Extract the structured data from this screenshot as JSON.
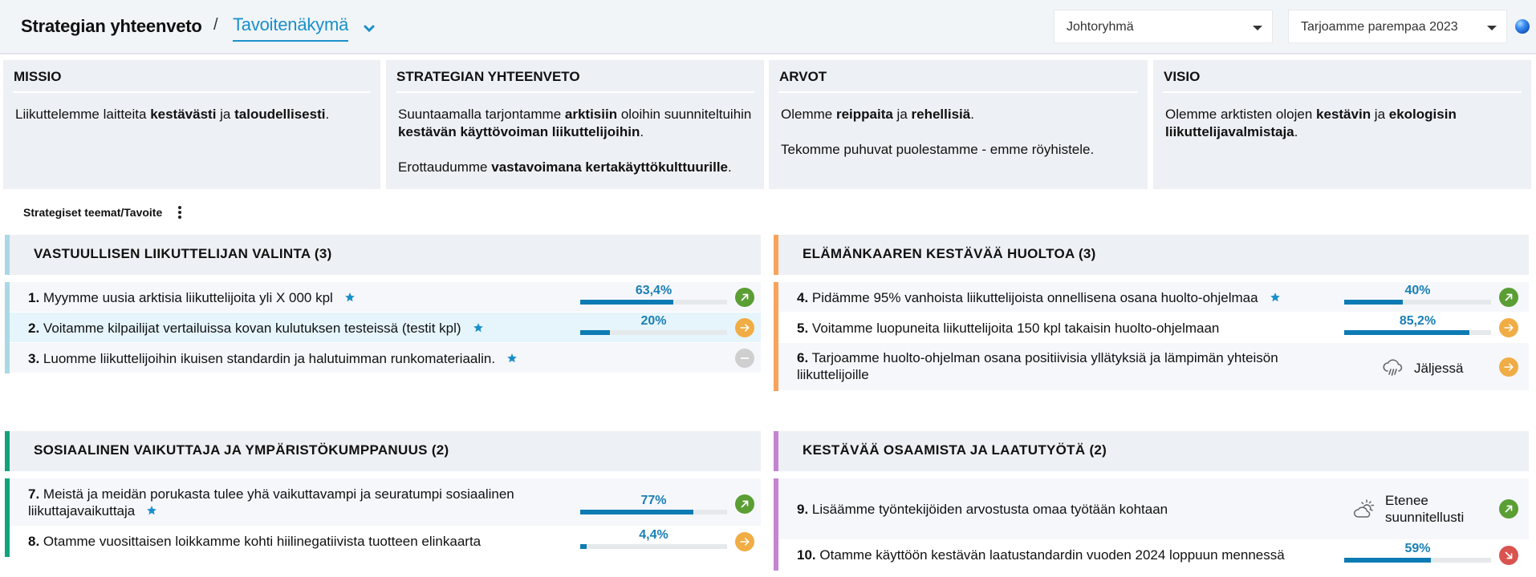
{
  "header": {
    "breadcrumb_root": "Strategian yhteenveto",
    "separator": "/",
    "current_view": "Tavoitenäkymä",
    "group_select": "Johtoryhmä",
    "strategy_select": "Tarjoamme parempaa 2023"
  },
  "cards": [
    {
      "title": "MISSIO",
      "paragraphs": [
        "Liikuttelemme laitteita <b>kestävästi</b> ja <b>taloudellisesti</b>."
      ]
    },
    {
      "title": "STRATEGIAN YHTEENVETO",
      "paragraphs": [
        "Suuntaamalla tarjontamme <b>arktisiin</b> oloihin suunniteltuihin <b>kestävän käyttövoiman liikuttelijoihin</b>.",
        "Erottaudumme <b>vastavoimana kertakäyttökulttuurille</b>."
      ]
    },
    {
      "title": "ARVOT",
      "paragraphs": [
        "Olemme <b>reippaita</b> ja <b>rehellisiä</b>.",
        "Tekomme puhuvat puolestamme - emme röyhistele."
      ]
    },
    {
      "title": "VISIO",
      "paragraphs": [
        "Olemme arktisten olojen <b>kestävin</b> ja <b>ekologisin liikuttelijavalmistaja</b>."
      ]
    }
  ],
  "section": {
    "label": "Strategiset teemat/Tavoite"
  },
  "colors": {
    "accent": "#1a8fc9",
    "progress": "#0d7bb3",
    "status_green": "#5a9e34",
    "status_orange": "#f0ad45",
    "status_red": "#d9534f",
    "status_gray": "#cfcfcf",
    "theme1": "#a9d8e6",
    "theme2": "#f7a35c",
    "theme3": "#12a37a",
    "theme4": "#c583d1"
  },
  "themes": [
    {
      "title": "VASTUULLISEN LIIKUTTELIJAN VALINTA (3)",
      "goals": [
        {
          "num": "1.",
          "text": "Myymme uusia arktisia liikuttelijoita yli X 000 kpl",
          "starred": true,
          "progress": "63,4%",
          "pct": 63.4,
          "status": "green-up-right"
        },
        {
          "num": "2.",
          "text": "Voitamme kilpailijat vertailuissa kovan kulutuksen testeissä (testit kpl)",
          "starred": true,
          "progress": "20%",
          "pct": 20,
          "status": "orange-right"
        },
        {
          "num": "3.",
          "text": "Luomme liikuttelijoihin ikuisen standardin ja halutuimman runkomateriaalin.",
          "starred": true,
          "progress": null,
          "status": "gray-none"
        }
      ]
    },
    {
      "title": "ELÄMÄNKAAREN KESTÄVÄÄ HUOLTOA (3)",
      "goals": [
        {
          "num": "4.",
          "text": "Pidämme 95% vanhoista liikuttelijoista onnellisena osana huolto-ohjelmaa",
          "starred": true,
          "progress": "40%",
          "pct": 40,
          "status": "green-up-right"
        },
        {
          "num": "5.",
          "text": "Voitamme luopuneita liikuttelijoita 150 kpl takaisin huolto-ohjelmaan",
          "starred": false,
          "progress": "85,2%",
          "pct": 85.2,
          "status": "orange-right"
        },
        {
          "num": "6.",
          "text": "Tarjoamme huolto-ohjelman osana positiivisia yllätyksiä ja lämpimän yhteisön liikuttelijoille",
          "starred": false,
          "weather": "Jäljessä",
          "weather_icon": "rain-cloud-icon",
          "status": "orange-right"
        }
      ]
    },
    {
      "title": "SOSIAALINEN VAIKUTTAJA JA YMPÄRISTÖKUMPPANUUS (2)",
      "goals": [
        {
          "num": "7.",
          "text": "Meistä ja meidän porukasta tulee yhä vaikuttavampi ja seuratumpi sosiaalinen liikuttajavaikuttaja",
          "starred": true,
          "progress": "77%",
          "pct": 77,
          "status": "green-up-right"
        },
        {
          "num": "8.",
          "text": "Otamme vuosittaisen loikkamme kohti hiilinegatiivista tuotteen elinkaarta",
          "starred": false,
          "progress": "4,4%",
          "pct": 4.4,
          "status": "orange-right"
        }
      ]
    },
    {
      "title": "KESTÄVÄÄ OSAAMISTA JA LAATUTYÖTÄ (2)",
      "goals": [
        {
          "num": "9.",
          "text": "Lisäämme työntekijöiden arvostusta omaa työtään kohtaan",
          "starred": false,
          "weather": "Etenee suunnitellusti",
          "weather_line1": "Etenee",
          "weather_line2": "suunnitellusti",
          "weather_icon": "partly-sunny-icon",
          "status": "green-up-right"
        },
        {
          "num": "10.",
          "text": "Otamme käyttöön kestävän laatustandardin vuoden 2024 loppuun mennessä",
          "starred": false,
          "progress": "59%",
          "pct": 59,
          "status": "red-down-right"
        }
      ]
    }
  ]
}
